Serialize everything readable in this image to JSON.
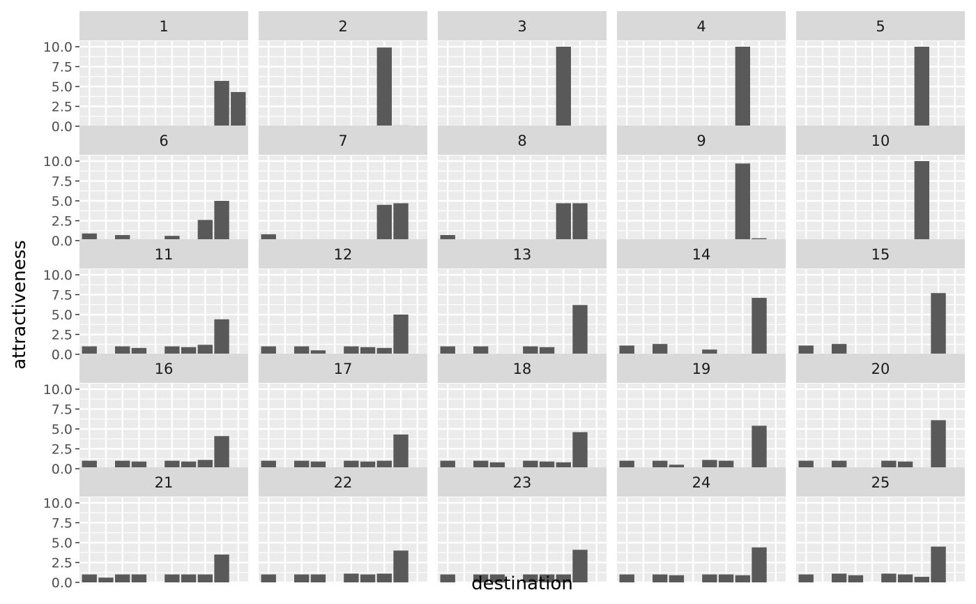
{
  "chart_data": {
    "type": "bar",
    "layout": "facet_wrap 5x5",
    "xlabel": "destination",
    "ylabel": "attractiveness",
    "ylim": [
      0,
      10.0
    ],
    "y_ticks": [
      "0.0",
      "2.5",
      "5.0",
      "7.5",
      "10.0"
    ],
    "x_ticks_labeled": false,
    "x": [
      1,
      2,
      3,
      4,
      5,
      6,
      7,
      8,
      9,
      10
    ],
    "grid": true,
    "legend": "none",
    "colors": {
      "bar": "#595959",
      "panel_bg": "#ebebeb",
      "strip_bg": "#d9d9d9",
      "grid": "#ffffff"
    },
    "panels": [
      {
        "label": "1",
        "values": [
          0,
          0,
          0,
          0,
          0,
          0,
          0,
          0,
          5.7,
          4.3
        ]
      },
      {
        "label": "2",
        "values": [
          0,
          0,
          0,
          0,
          0,
          0,
          0,
          9.9,
          0.1,
          0
        ]
      },
      {
        "label": "3",
        "values": [
          0,
          0,
          0,
          0,
          0,
          0,
          0,
          10.0,
          0,
          0
        ]
      },
      {
        "label": "4",
        "values": [
          0,
          0,
          0,
          0,
          0,
          0,
          0,
          10.0,
          0,
          0
        ]
      },
      {
        "label": "5",
        "values": [
          0,
          0,
          0,
          0,
          0,
          0,
          0,
          10.0,
          0,
          0
        ]
      },
      {
        "label": "6",
        "values": [
          0.9,
          0,
          0.7,
          0.1,
          0,
          0.6,
          0.1,
          2.6,
          5.0,
          0
        ]
      },
      {
        "label": "7",
        "values": [
          0.8,
          0,
          0,
          0,
          0,
          0,
          0,
          4.5,
          4.7,
          0
        ]
      },
      {
        "label": "8",
        "values": [
          0.7,
          0,
          0,
          0,
          0,
          0,
          0,
          4.7,
          4.7,
          0
        ]
      },
      {
        "label": "9",
        "values": [
          0,
          0,
          0,
          0,
          0,
          0,
          0,
          9.7,
          0.3,
          0
        ]
      },
      {
        "label": "10",
        "values": [
          0,
          0,
          0,
          0,
          0,
          0,
          0,
          10.0,
          0,
          0
        ]
      },
      {
        "label": "11",
        "values": [
          1.0,
          0,
          1.0,
          0.8,
          0,
          1.0,
          0.9,
          1.2,
          4.4,
          0
        ]
      },
      {
        "label": "12",
        "values": [
          1.0,
          0,
          1.0,
          0.5,
          0,
          1.0,
          0.9,
          0.8,
          5.0,
          0
        ]
      },
      {
        "label": "13",
        "values": [
          1.0,
          0,
          1.0,
          0,
          0,
          1.0,
          0.9,
          0,
          6.2,
          0
        ]
      },
      {
        "label": "14",
        "values": [
          1.1,
          0,
          1.3,
          0,
          0,
          0.6,
          0,
          0,
          7.1,
          0
        ]
      },
      {
        "label": "15",
        "values": [
          1.1,
          0,
          1.3,
          0,
          0,
          0,
          0,
          0,
          7.7,
          0
        ]
      },
      {
        "label": "16",
        "values": [
          1.0,
          0,
          1.0,
          0.9,
          0,
          1.0,
          0.9,
          1.1,
          4.1,
          0
        ]
      },
      {
        "label": "17",
        "values": [
          1.0,
          0,
          1.0,
          0.9,
          0,
          1.0,
          0.9,
          1.0,
          4.3,
          0
        ]
      },
      {
        "label": "18",
        "values": [
          1.0,
          0,
          1.0,
          0.8,
          0,
          1.0,
          0.9,
          0.8,
          4.6,
          0
        ]
      },
      {
        "label": "19",
        "values": [
          1.0,
          0,
          1.0,
          0.5,
          0,
          1.1,
          1.0,
          0,
          5.4,
          0
        ]
      },
      {
        "label": "20",
        "values": [
          1.0,
          0,
          1.0,
          0,
          0,
          1.0,
          0.9,
          0,
          6.1,
          0
        ]
      },
      {
        "label": "21",
        "values": [
          1.0,
          0.6,
          1.0,
          1.0,
          0,
          1.0,
          1.0,
          1.0,
          3.5,
          0
        ]
      },
      {
        "label": "22",
        "values": [
          1.0,
          0,
          1.0,
          1.0,
          0,
          1.1,
          1.0,
          1.1,
          4.0,
          0
        ]
      },
      {
        "label": "23",
        "values": [
          1.0,
          0,
          1.0,
          1.0,
          0,
          1.0,
          1.0,
          1.0,
          4.1,
          0
        ]
      },
      {
        "label": "24",
        "values": [
          1.0,
          0,
          1.0,
          0.9,
          0,
          1.0,
          1.0,
          0.9,
          4.4,
          0
        ]
      },
      {
        "label": "25",
        "values": [
          1.0,
          0,
          1.1,
          0.9,
          0,
          1.1,
          1.0,
          0.7,
          4.5,
          0
        ]
      }
    ]
  }
}
